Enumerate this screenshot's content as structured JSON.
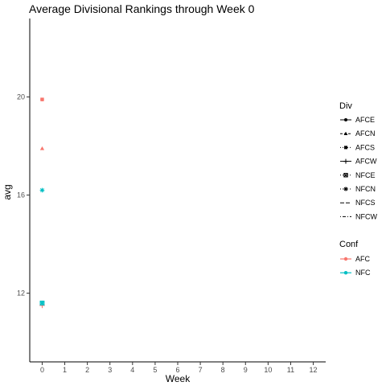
{
  "chart_data": {
    "type": "scatter",
    "title": "Average Divisional Rankings through Week  0",
    "xlabel": "Week",
    "ylabel": "avg",
    "xlim": [
      -0.55,
      12.55
    ],
    "ylim": [
      23.2,
      9.2
    ],
    "y_reversed": true,
    "x_ticks": [
      0,
      1,
      2,
      3,
      4,
      5,
      6,
      7,
      8,
      9,
      10,
      11,
      12
    ],
    "y_ticks": [
      12,
      16,
      20
    ],
    "grid": false,
    "points": [
      {
        "x": 0,
        "y": 11.5,
        "div": "AFCW",
        "conf": "AFC"
      },
      {
        "x": 0,
        "y": 11.6,
        "div": "NFCE",
        "conf": "NFC"
      },
      {
        "x": 0,
        "y": 11.6,
        "div": "NFCN",
        "conf": "NFC"
      },
      {
        "x": 0,
        "y": 16.2,
        "div": "NFCN",
        "conf": "NFC"
      },
      {
        "x": 0,
        "y": 17.9,
        "div": "AFCN",
        "conf": "AFC"
      },
      {
        "x": 0,
        "y": 19.9,
        "div": "AFCE",
        "conf": "AFC"
      },
      {
        "x": 0,
        "y": 19.9,
        "div": "AFCS",
        "conf": "AFC"
      }
    ],
    "legend": {
      "placement": "right",
      "div": {
        "title": "Div",
        "entries": [
          {
            "label": "AFCE",
            "shape": "circle",
            "line": "solid"
          },
          {
            "label": "AFCN",
            "shape": "triangle",
            "line": "dashed"
          },
          {
            "label": "AFCS",
            "shape": "square",
            "line": "dotted"
          },
          {
            "label": "AFCW",
            "shape": "plus",
            "line": "solid"
          },
          {
            "label": "NFCE",
            "shape": "square-x",
            "line": "dotted"
          },
          {
            "label": "NFCN",
            "shape": "asterisk",
            "line": "dotted"
          },
          {
            "label": "NFCS",
            "shape": "none",
            "line": "longdash"
          },
          {
            "label": "NFCW",
            "shape": "none",
            "line": "dotdash"
          }
        ]
      },
      "conf": {
        "title": "Conf",
        "entries": [
          {
            "label": "AFC",
            "color": "#F8766D"
          },
          {
            "label": "NFC",
            "color": "#00BFC4"
          }
        ]
      }
    }
  }
}
